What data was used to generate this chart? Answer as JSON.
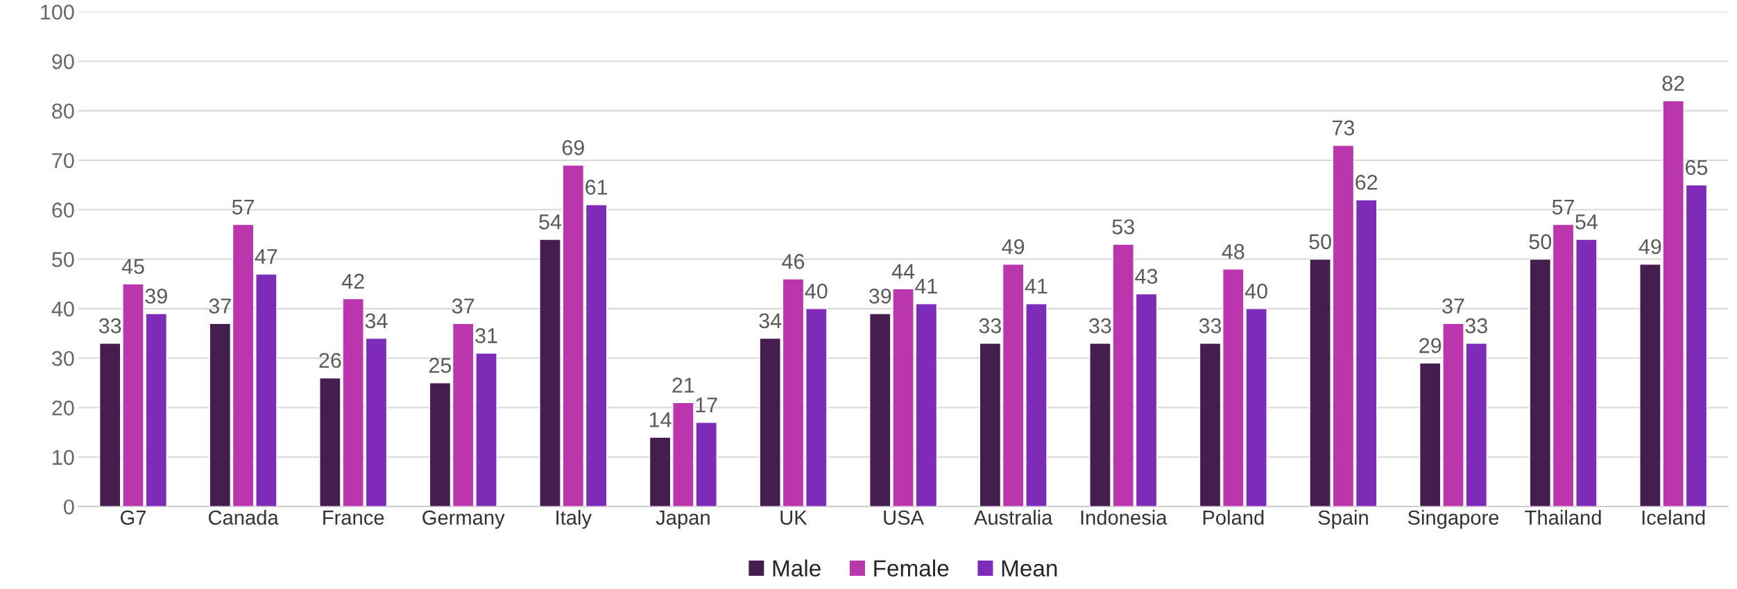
{
  "chart_data": {
    "type": "bar",
    "categories": [
      "G7",
      "Canada",
      "France",
      "Germany",
      "Italy",
      "Japan",
      "UK",
      "USA",
      "Australia",
      "Indonesia",
      "Poland",
      "Spain",
      "Singapore",
      "Thailand",
      "Iceland"
    ],
    "series": [
      {
        "name": "Male",
        "color": "#451d4e",
        "values": [
          33,
          37,
          26,
          25,
          54,
          14,
          34,
          39,
          33,
          33,
          33,
          50,
          29,
          50,
          49
        ]
      },
      {
        "name": "Female",
        "color": "#bb35ad",
        "values": [
          45,
          57,
          42,
          37,
          69,
          21,
          46,
          44,
          49,
          53,
          48,
          73,
          37,
          57,
          82
        ]
      },
      {
        "name": "Mean",
        "color": "#7f2bb9",
        "values": [
          39,
          47,
          34,
          31,
          61,
          17,
          40,
          41,
          41,
          43,
          40,
          62,
          33,
          54,
          65
        ]
      }
    ],
    "ylim": [
      0,
      100
    ],
    "yticks": [
      0,
      10,
      20,
      30,
      40,
      50,
      60,
      70,
      80,
      90,
      100
    ],
    "grid": "y",
    "legend": "bottom",
    "data_labels": true
  }
}
